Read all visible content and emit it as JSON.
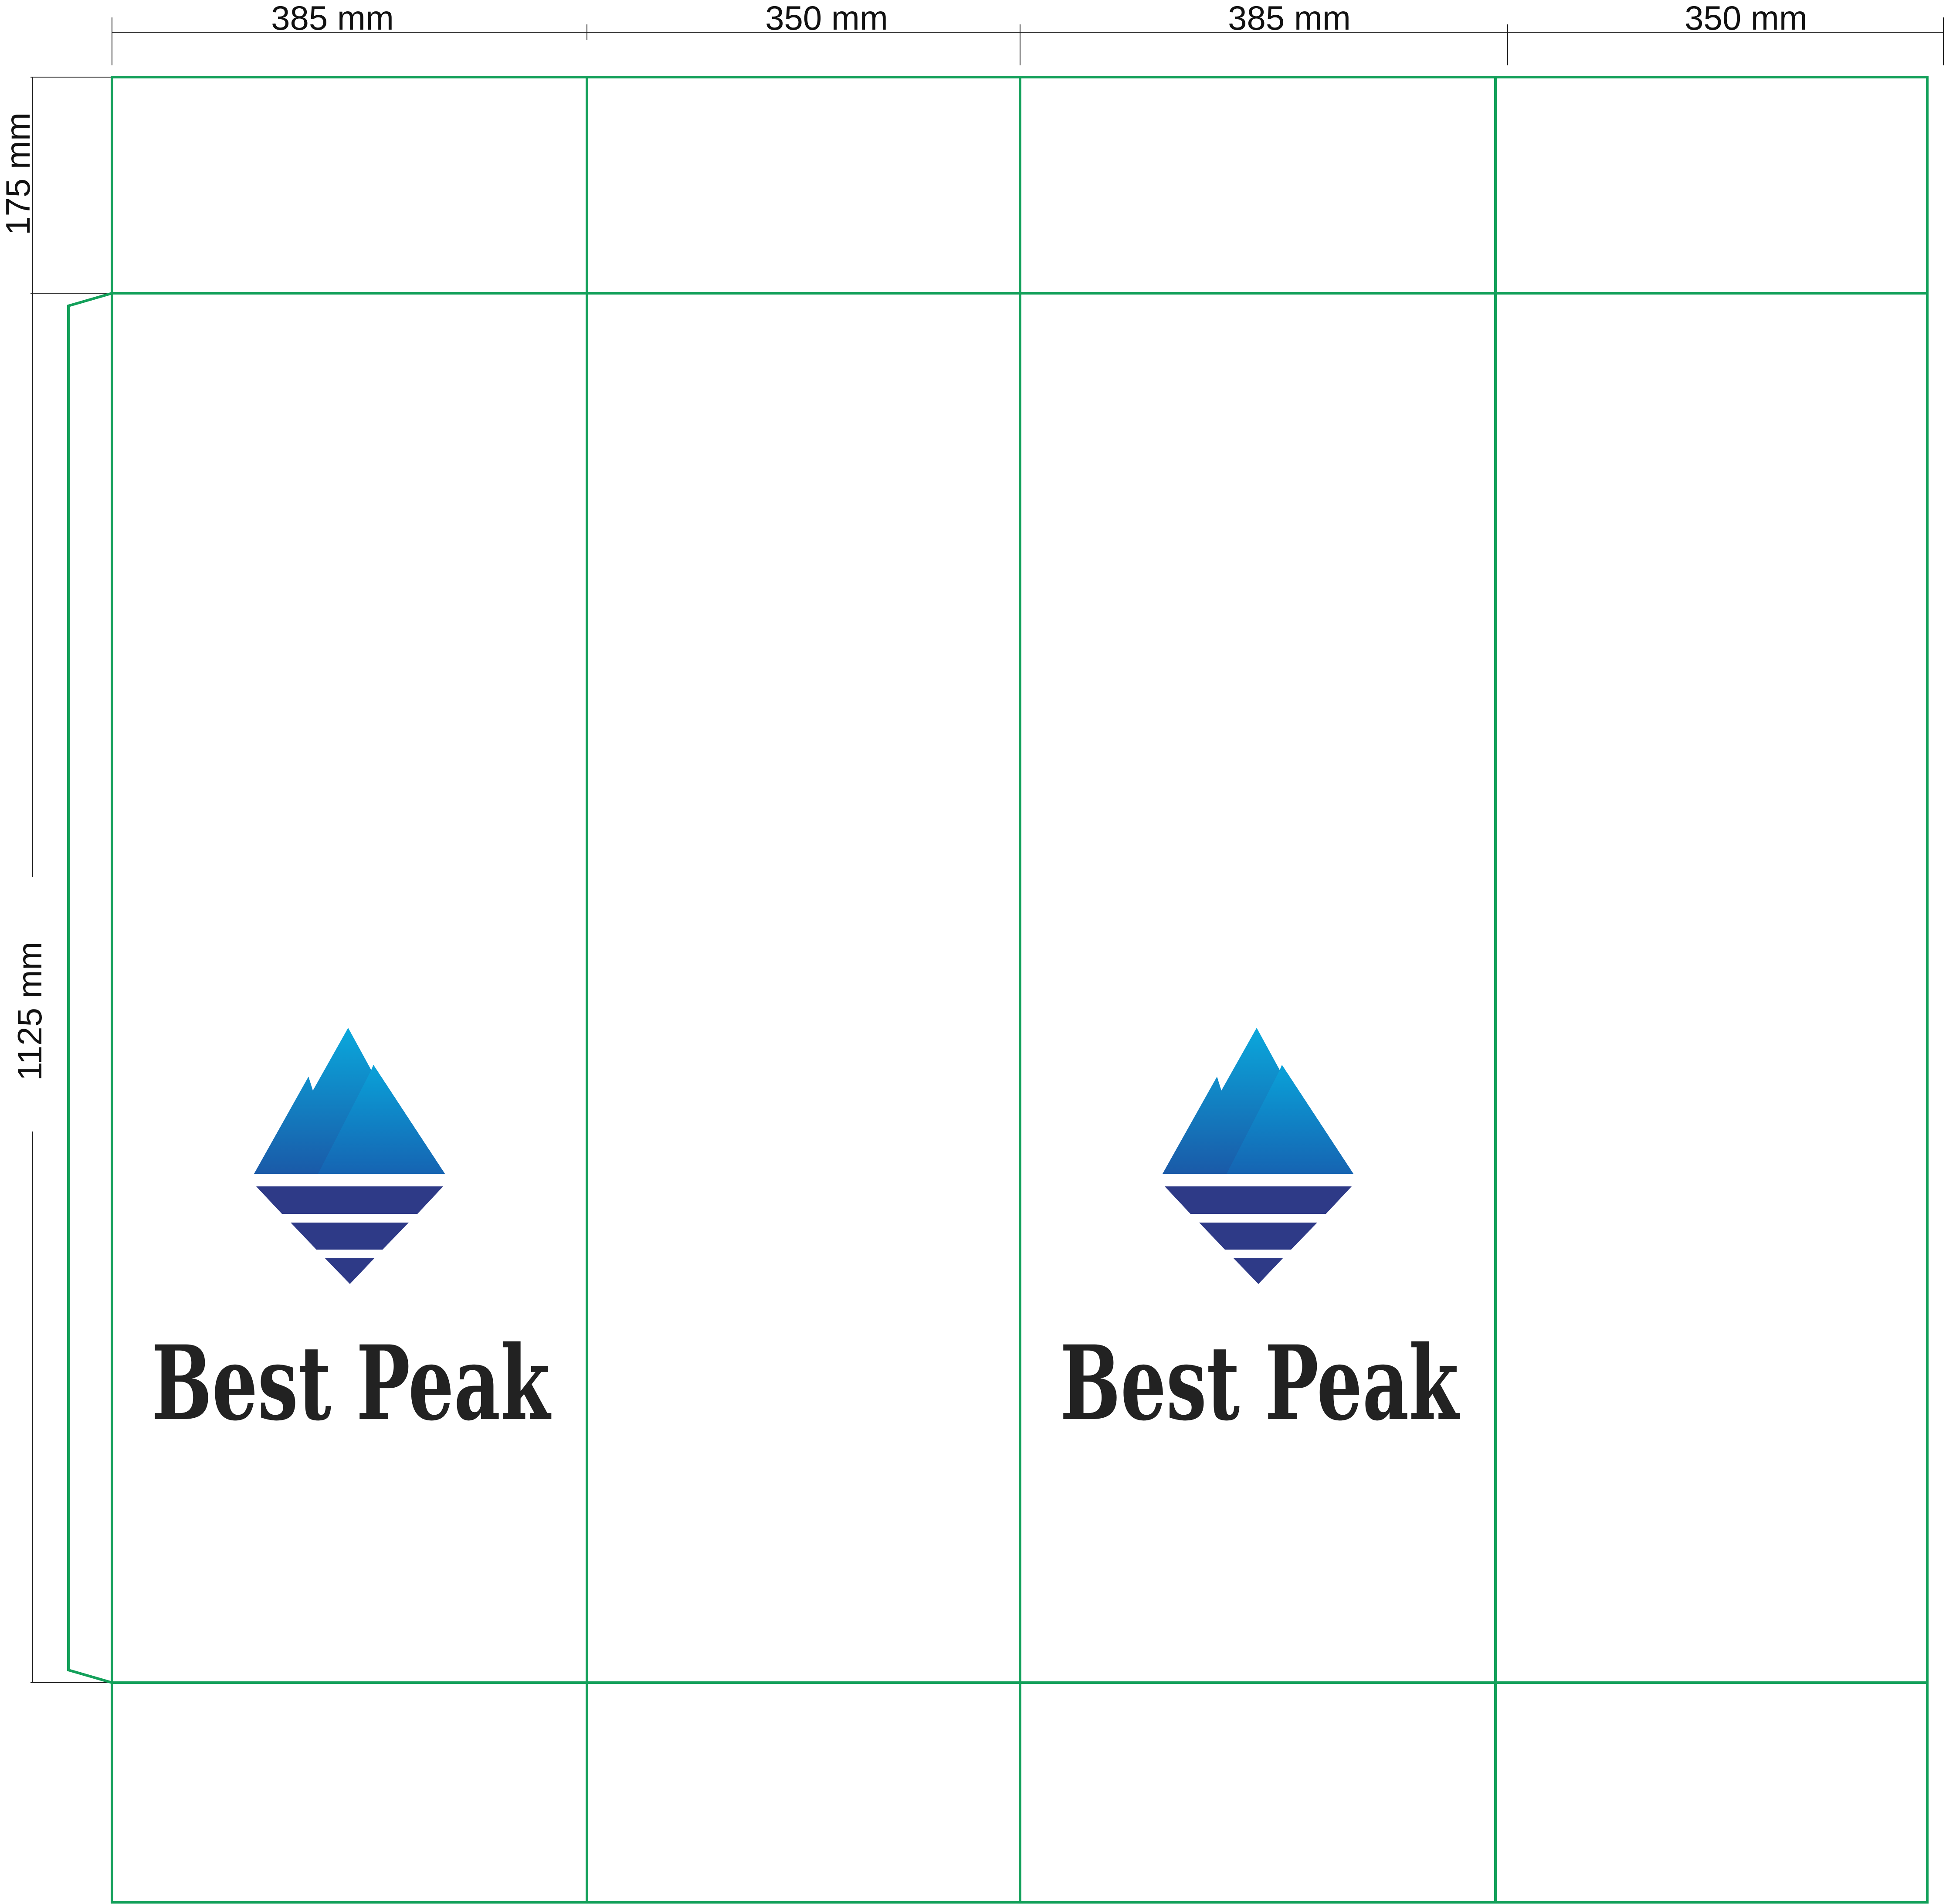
{
  "dimensions": {
    "widths": [
      "385 mm",
      "350 mm",
      "385 mm",
      "350 mm"
    ],
    "heights": [
      "175 mm",
      "1125 mm"
    ]
  },
  "logos": [
    {
      "brand_name": "Best Peak",
      "icon": "mountain-reflection-icon"
    },
    {
      "brand_name": "Best Peak",
      "icon": "mountain-reflection-icon"
    }
  ],
  "colors": {
    "cut_line": "#13a05a",
    "mountain_top": "#0aa8dc",
    "mountain_bottom": "#1a5aa8",
    "stripes": "#2e3a87",
    "brand_text": "#222222"
  }
}
